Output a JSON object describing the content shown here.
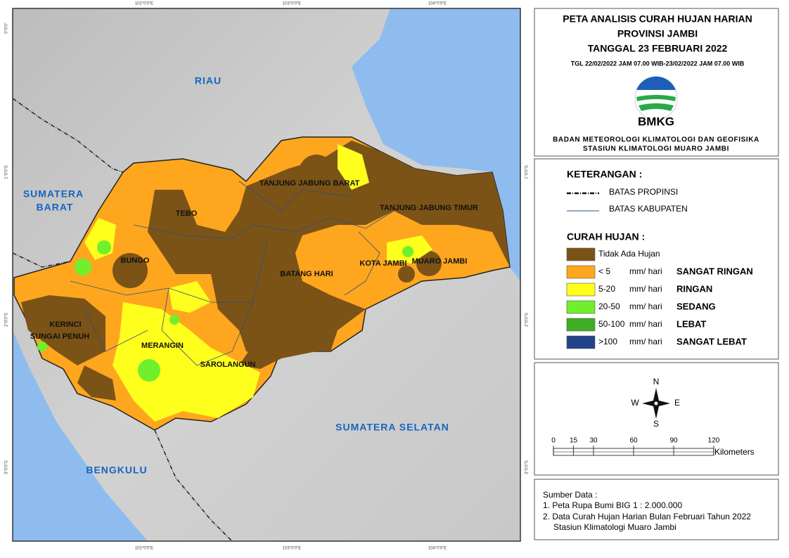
{
  "map": {
    "labels": [
      "RIAU",
      "SUMATERA",
      "BARAT",
      "SUMATERA SELATAN",
      "BENGKULU",
      "TANJUNG JABUNG BARAT",
      "TANJUNG JABUNG TIMUR",
      "TEBO",
      "BUNGO",
      "BATANG HARI",
      "KOTA JAMBI",
      "MUARO JAMBI",
      "KERINCI",
      "SUNGAI PENUH",
      "MERANGIN",
      "SAROLANGUN"
    ],
    "lon_ticks": [
      "102°0'0\"E",
      "103°0'0\"E",
      "104°0'0\"E"
    ],
    "lat_ticks": [
      "0°0'0\"",
      "1°0'0\"S",
      "2°0'0\"S",
      "3°0'0\"S"
    ]
  },
  "title": {
    "lines": [
      "PETA ANALISIS CURAH HUJAN HARIAN",
      "PROVINSI JAMBI",
      "TANGGAL 23 FEBRUARI 2022"
    ],
    "period": "TGL 22/02/2022 JAM 07.00 WIB-23/02/2022 JAM 07.00 WIB",
    "logo": "BMKG",
    "agency": [
      "BADAN METEOROLOGI KLIMATOLOGI DAN GEOFISIKA",
      "STASIUN KLIMATOLOGI MUARO JAMBI"
    ]
  },
  "legend": {
    "heading": "KETERANGAN :",
    "boundaries": [
      "BATAS PROPINSI",
      "BATAS KABUPATEN"
    ],
    "rain_heading": "CURAH HUJAN :",
    "classes": [
      {
        "range": "Tidak Ada Hujan",
        "color": "#7b5317"
      },
      {
        "range": "< 5",
        "unit": "mm/ hari",
        "category": "SANGAT RINGAN",
        "color": "#ffa61f"
      },
      {
        "range": "5-20",
        "unit": "mm/ hari",
        "category": "RINGAN",
        "color": "#ffff1e"
      },
      {
        "range": "20-50",
        "unit": "mm/ hari",
        "category": "SEDANG",
        "color": "#6ef02d"
      },
      {
        "range": "50-100",
        "unit": "mm/ hari",
        "category": "LEBAT",
        "color": "#3fae25"
      },
      {
        "range": ">100",
        "unit": "mm/ hari",
        "category": "SANGAT LEBAT",
        "color": "#22428a"
      }
    ]
  },
  "compass": {
    "n": "N",
    "s": "S",
    "e": "E",
    "w": "W"
  },
  "scale": {
    "ticks": [
      0,
      15,
      30,
      60,
      90,
      120
    ],
    "unit": "Kilometers"
  },
  "source": {
    "heading": "Sumber Data :",
    "items": [
      "1. Peta Rupa Bumi BIG 1 : 2.000.000",
      "2. Data Curah Hujan Harian Bulan Februari Tahun 2022",
      "Stasiun Klimatologi Muaro Jambi"
    ]
  }
}
